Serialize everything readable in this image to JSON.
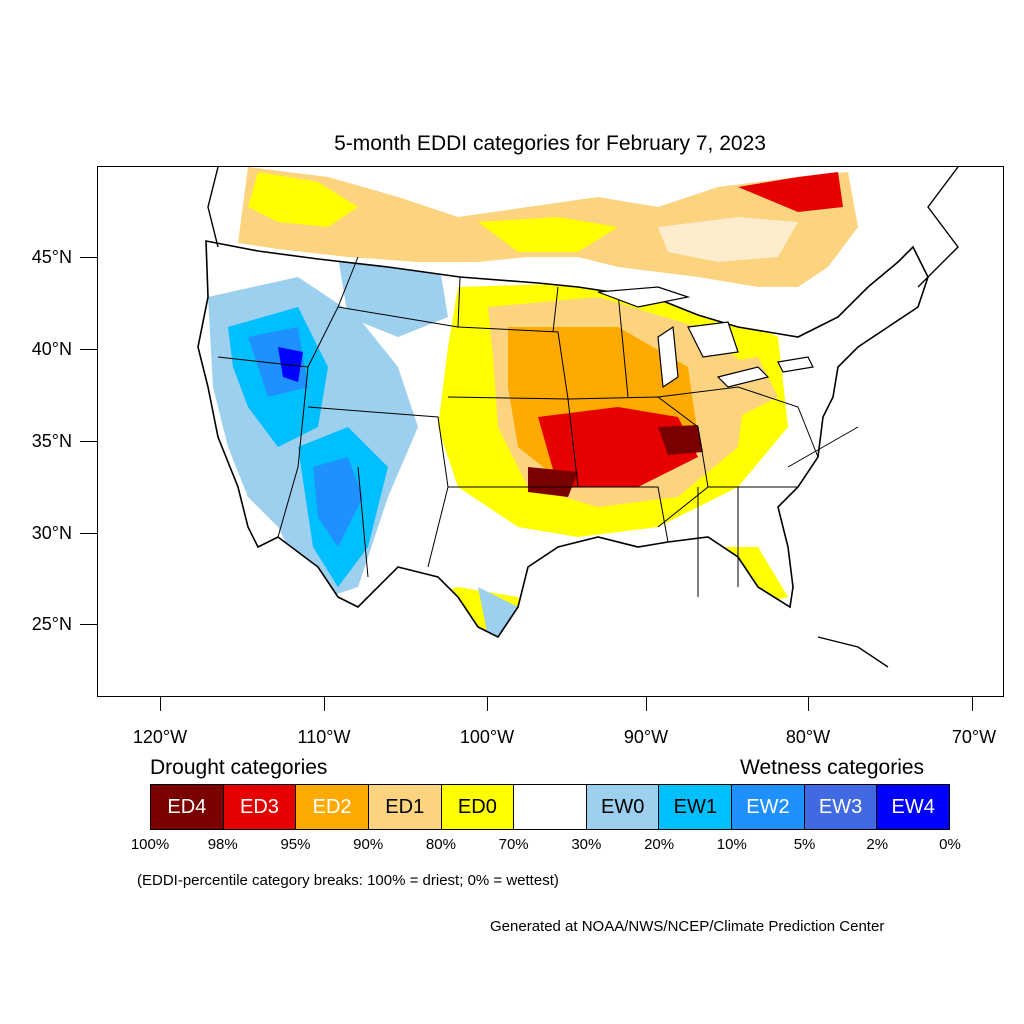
{
  "title": "5-month EDDI categories for February 7, 2023",
  "lat_labels": [
    "45°N",
    "40°N",
    "35°N",
    "30°N",
    "25°N"
  ],
  "lon_labels": [
    "120°W",
    "110°W",
    "100°W",
    "90°W",
    "80°W",
    "70°W"
  ],
  "legend": {
    "drought_heading": "Drought categories",
    "wetness_heading": "Wetness categories",
    "categories": [
      {
        "label": "ED4",
        "color": "#7a0000",
        "text_color": "#ffffff"
      },
      {
        "label": "ED3",
        "color": "#e60000",
        "text_color": "#ffffff"
      },
      {
        "label": "ED2",
        "color": "#ffaa00",
        "text_color": "#ffffff"
      },
      {
        "label": "ED1",
        "color": "#fcd37f",
        "text_color": "#000000"
      },
      {
        "label": "ED0",
        "color": "#ffff00",
        "text_color": "#000000"
      },
      {
        "label": "",
        "color": "#ffffff",
        "text_color": "#000000"
      },
      {
        "label": "EW0",
        "color": "#9dcfee",
        "text_color": "#000000"
      },
      {
        "label": "EW1",
        "color": "#00bfff",
        "text_color": "#000000"
      },
      {
        "label": "EW2",
        "color": "#1e90ff",
        "text_color": "#ffffff"
      },
      {
        "label": "EW3",
        "color": "#4169e1",
        "text_color": "#ffffff"
      },
      {
        "label": "EW4",
        "color": "#0000ff",
        "text_color": "#ffffff"
      }
    ],
    "breaks": [
      "100%",
      "98%",
      "95%",
      "90%",
      "80%",
      "70%",
      "30%",
      "20%",
      "10%",
      "5%",
      "2%",
      "0%"
    ]
  },
  "note": "(EDDI-percentile category breaks: 100% = driest; 0% = wettest)",
  "credit": "Generated at NOAA/NWS/NCEP/Climate Prediction Center"
}
